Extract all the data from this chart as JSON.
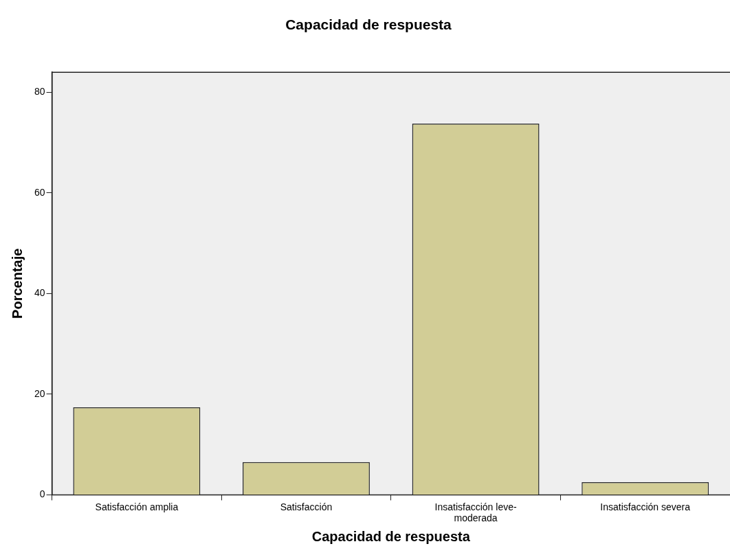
{
  "chart_data": {
    "type": "bar",
    "title": "Capacidad de respuesta",
    "xlabel": "Capacidad de respuesta",
    "ylabel": "Porcentaje",
    "categories": [
      "Satisfacción amplia",
      "Satisfacción",
      "Insatisfacción leve-moderada",
      "Insatisfacción severa"
    ],
    "values": [
      17.4,
      6.5,
      73.8,
      2.5
    ],
    "color": "#d2cd96",
    "ylim": [
      0,
      84
    ],
    "yticks": [
      0,
      20,
      40,
      60,
      80
    ],
    "grid": false,
    "legend": false
  }
}
